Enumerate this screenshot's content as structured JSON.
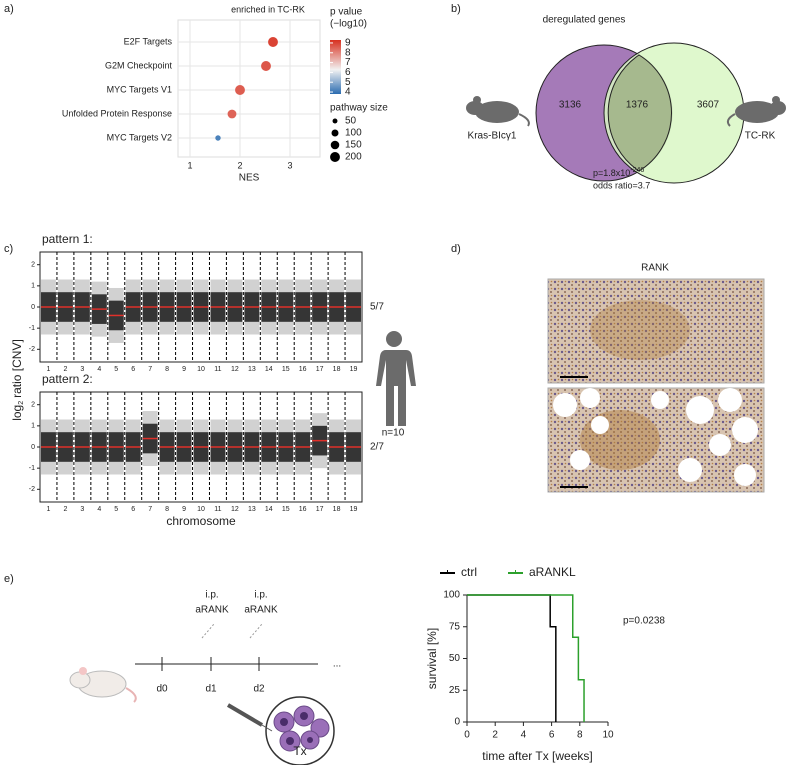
{
  "panels": [
    "a)",
    "b)",
    "c)",
    "d)",
    "e)"
  ],
  "chart_data": [
    {
      "type": "scatter",
      "title": "enriched in TC-RK",
      "x_label": "NES",
      "categories": [
        "E2F Targets",
        "G2M Checkpoint",
        "MYC Targets V1",
        "Unfolded Protein Response",
        "MYC Targets V2"
      ],
      "values": [
        2.66,
        2.52,
        2.0,
        1.84,
        1.56
      ],
      "p_values": [
        9.0,
        8.7,
        8.6,
        8.5,
        4.2
      ],
      "sizes": [
        200,
        200,
        200,
        160,
        60
      ],
      "xlim": [
        0.76,
        3.6
      ],
      "xticks": [
        1,
        2,
        3
      ],
      "grid": true,
      "color_legend_title": [
        "p value",
        "(−log10)"
      ],
      "color_lim": [
        3.8,
        9.3
      ],
      "color_ticks": [
        4,
        5,
        6,
        7,
        8,
        9
      ],
      "size_legend_title": "pathway size",
      "size_ticks": [
        50,
        100,
        150,
        200
      ]
    },
    {
      "type": "segments",
      "x_label": "chromosome",
      "y_label": [
        "log",
        "2",
        "ratio [CNV]"
      ],
      "chromosomes": [
        "1",
        "2",
        "3",
        "4",
        "5",
        "6",
        "7",
        "8",
        "9",
        "10",
        "11",
        "12",
        "13",
        "14",
        "15",
        "16",
        "17",
        "18",
        "19"
      ],
      "ylim": [
        -2.6,
        2.6
      ],
      "yticks": [
        -2,
        -1,
        0,
        1,
        2
      ],
      "patterns": [
        {
          "label": "pattern 1:",
          "fraction": "5/7",
          "segments": [
            0,
            0,
            0,
            -0.1,
            -0.4,
            0,
            0,
            0,
            0,
            0,
            0,
            0,
            0,
            0,
            0,
            0,
            0,
            0,
            0
          ]
        },
        {
          "label": "pattern 2:",
          "fraction": "2/7",
          "segments": [
            0,
            0,
            0,
            0,
            0,
            0,
            0.4,
            0,
            0,
            0,
            0,
            0,
            0,
            0,
            0,
            0,
            0.3,
            0,
            0
          ]
        }
      ]
    },
    {
      "type": "step",
      "x_label": "time after Tx [weeks]",
      "y_label": "survival [%]",
      "annotation": "p=0.0238",
      "xlim": [
        0,
        10
      ],
      "ylim": [
        0,
        100
      ],
      "xticks": [
        0,
        2,
        4,
        6,
        8,
        10
      ],
      "yticks": [
        0,
        25,
        50,
        75,
        100
      ],
      "legend": "top",
      "series": [
        {
          "name": "ctrl",
          "color": "#000000",
          "x": [
            0,
            5.9,
            5.9,
            6.3,
            6.3
          ],
          "values": [
            100,
            100,
            75,
            75,
            0
          ]
        },
        {
          "name": "aRANKL",
          "color": "#2ca02c",
          "x": [
            0,
            7.5,
            7.5,
            7.9,
            7.9,
            8.3,
            8.3
          ],
          "values": [
            100,
            100,
            66.7,
            66.7,
            33.3,
            33.3,
            0
          ]
        }
      ]
    }
  ],
  "venn": {
    "title": "deregulated genes",
    "left_label": "Kras-BIcγ1",
    "right_label": "TC-RK",
    "left_only": "3136",
    "overlap": "1376",
    "right_only": "3607",
    "p_text": "p=1.8x10",
    "p_exponent": "-246",
    "odds_ratio": "odds ratio=3.7"
  },
  "ihc": {
    "title": "RANK",
    "n": "n=10"
  },
  "schema": {
    "injections": [
      [
        "i.p.",
        "aRANK"
      ],
      [
        "i.p.",
        "aRANK"
      ]
    ],
    "days": [
      "d0",
      "d1",
      "d2"
    ],
    "continuation": "...",
    "tumor": "Tx"
  }
}
